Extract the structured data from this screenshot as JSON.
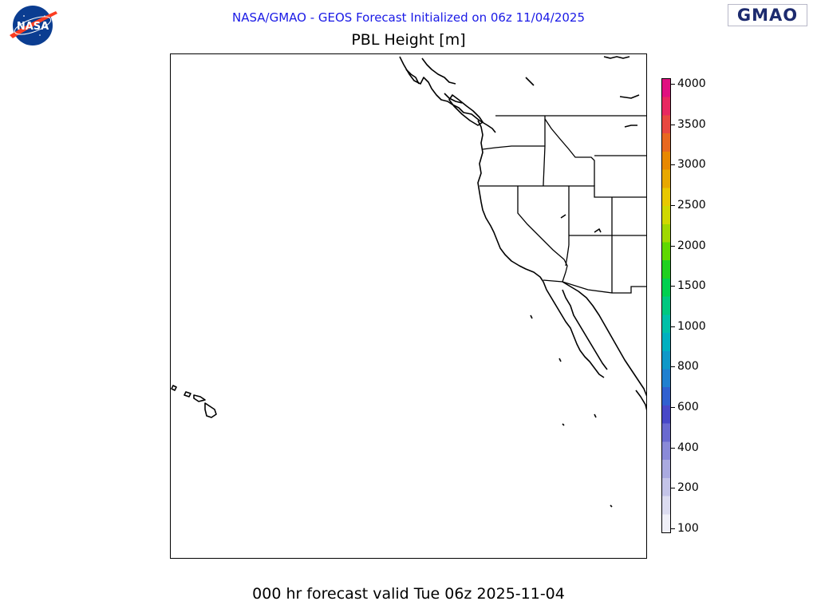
{
  "header": {
    "title": "NASA/GMAO - GEOS Forecast Initialized on 06z 11/04/2025",
    "title_color": "#1a1ae6"
  },
  "map": {
    "title": "PBL Height [m]",
    "region_features": [
      "pacific-coastline",
      "state-boundaries",
      "hawaii-islands",
      "baja-california"
    ]
  },
  "footer": {
    "text": "000 hr forecast valid Tue 06z 2025-11-04"
  },
  "logos": {
    "left": "NASA",
    "right": "GMAO"
  },
  "colorbar": {
    "labels": [
      "4000",
      "3500",
      "3000",
      "2500",
      "2000",
      "1500",
      "1000",
      "800",
      "600",
      "400",
      "200",
      "100"
    ],
    "colors": [
      "#f0f0f8",
      "#dcdcf0",
      "#c4c4e8",
      "#aaaae0",
      "#8a8ad8",
      "#6a6ad0",
      "#4848c8",
      "#3060d0",
      "#2080d0",
      "#1098c8",
      "#00b0c0",
      "#00c0a8",
      "#00c880",
      "#00d050",
      "#20d020",
      "#60d800",
      "#a0d800",
      "#d0d800",
      "#e8c800",
      "#e8a800",
      "#e88800",
      "#e86820",
      "#e84840",
      "#e82860",
      "#e01080"
    ]
  }
}
